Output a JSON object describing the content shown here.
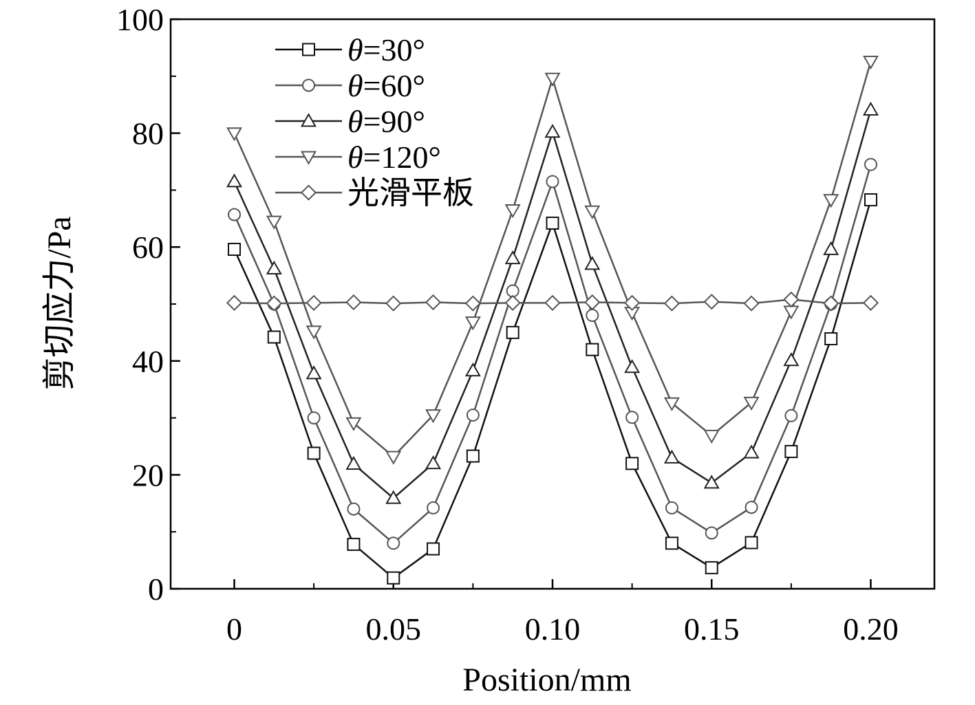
{
  "chart_data": {
    "type": "line",
    "xlabel": "Position/mm",
    "ylabel": "剪切应力/Pa",
    "xlim": [
      -0.02,
      0.22
    ],
    "ylim": [
      0,
      100
    ],
    "xticks": [
      {
        "value": 0,
        "label": "0"
      },
      {
        "value": 0.05,
        "label": "0.05"
      },
      {
        "value": 0.1,
        "label": "0.10"
      },
      {
        "value": 0.15,
        "label": "0.15"
      },
      {
        "value": 0.2,
        "label": "0.20"
      }
    ],
    "yticks": [
      {
        "value": 0,
        "label": "0"
      },
      {
        "value": 20,
        "label": "20"
      },
      {
        "value": 40,
        "label": "40"
      },
      {
        "value": 60,
        "label": "60"
      },
      {
        "value": 80,
        "label": "80"
      },
      {
        "value": 100,
        "label": "100"
      }
    ],
    "grid": false,
    "legend_position": "top-left",
    "x": [
      0,
      0.0125,
      0.025,
      0.0375,
      0.05,
      0.0625,
      0.075,
      0.0875,
      0.1,
      0.1125,
      0.125,
      0.1375,
      0.15,
      0.1625,
      0.175,
      0.1875,
      0.2
    ],
    "series": [
      {
        "name": "θ=30°",
        "marker": "square",
        "color": "#111111",
        "values": [
          59.6,
          44.2,
          23.8,
          7.8,
          1.9,
          7.0,
          23.3,
          45.0,
          64.2,
          42.0,
          22.0,
          8.0,
          3.7,
          8.1,
          24.1,
          43.9,
          68.3
        ]
      },
      {
        "name": "θ=60°",
        "marker": "circle",
        "color": "#555555",
        "values": [
          65.7,
          50.0,
          30.0,
          14.0,
          8.0,
          14.2,
          30.5,
          52.3,
          71.5,
          48.0,
          30.1,
          14.2,
          9.8,
          14.3,
          30.4,
          50.0,
          74.5
        ]
      },
      {
        "name": "θ=90°",
        "marker": "triangle-up",
        "color": "#222222",
        "values": [
          71.5,
          56.2,
          37.8,
          21.9,
          15.9,
          22.0,
          38.3,
          58.0,
          80.2,
          57.0,
          38.9,
          23.0,
          18.6,
          23.9,
          40.1,
          59.6,
          84.1
        ]
      },
      {
        "name": "θ=120°",
        "marker": "triangle-down",
        "color": "#555555",
        "values": [
          80.0,
          64.5,
          45.2,
          29.1,
          23.2,
          30.5,
          46.8,
          66.5,
          89.6,
          66.3,
          48.5,
          32.6,
          26.9,
          32.7,
          48.7,
          68.3,
          92.6
        ]
      },
      {
        "name": "光滑平板",
        "marker": "diamond",
        "color": "#555555",
        "values": [
          50.2,
          50.1,
          50.2,
          50.3,
          50.1,
          50.3,
          50.1,
          50.2,
          50.2,
          50.3,
          50.2,
          50.1,
          50.4,
          50.1,
          50.8,
          50.1,
          50.2
        ]
      }
    ]
  }
}
